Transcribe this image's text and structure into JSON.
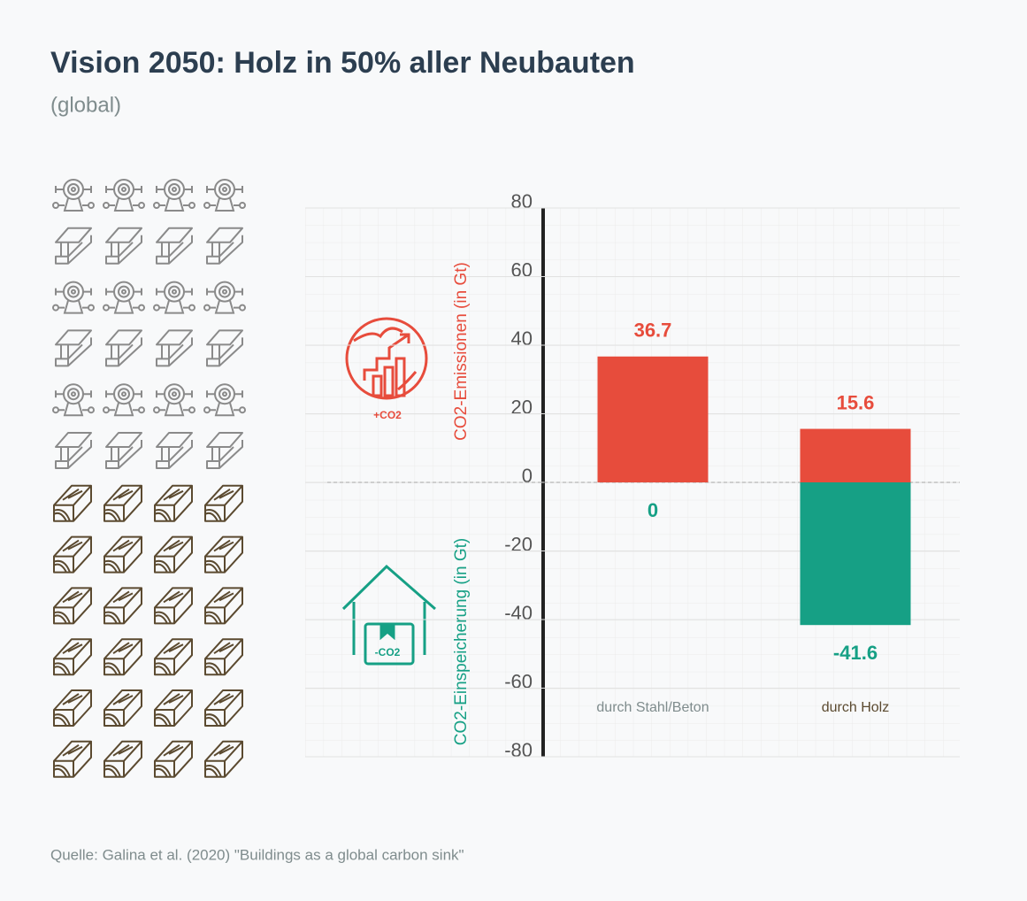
{
  "chart_data": {
    "type": "bar",
    "title": "Vision 2050: Holz in 50% aller Neubauten",
    "subtitle": "(global)",
    "source": "Quelle: Galina et al. (2020) \"Buildings as a global carbon sink\"",
    "categories": [
      "durch Stahl/Beton",
      "durch Holz"
    ],
    "category_colors": [
      "#7f8c8d",
      "#5b4a30"
    ],
    "series": [
      {
        "color": "#e74c3c",
        "values": [
          36.7,
          15.6
        ],
        "axis_label": "CO2-Emissionen (in Gt)",
        "icon_label": "+CO2"
      },
      {
        "color": "#16a085",
        "values": [
          0,
          -41.6
        ],
        "axis_label": "CO2-Einspeicherung (in Gt)",
        "icon_label": "-CO2"
      }
    ],
    "ylim": [
      -80,
      80
    ],
    "yticks": [
      -80,
      -60,
      -40,
      -20,
      0,
      20,
      40,
      60,
      80
    ],
    "grid": true
  }
}
